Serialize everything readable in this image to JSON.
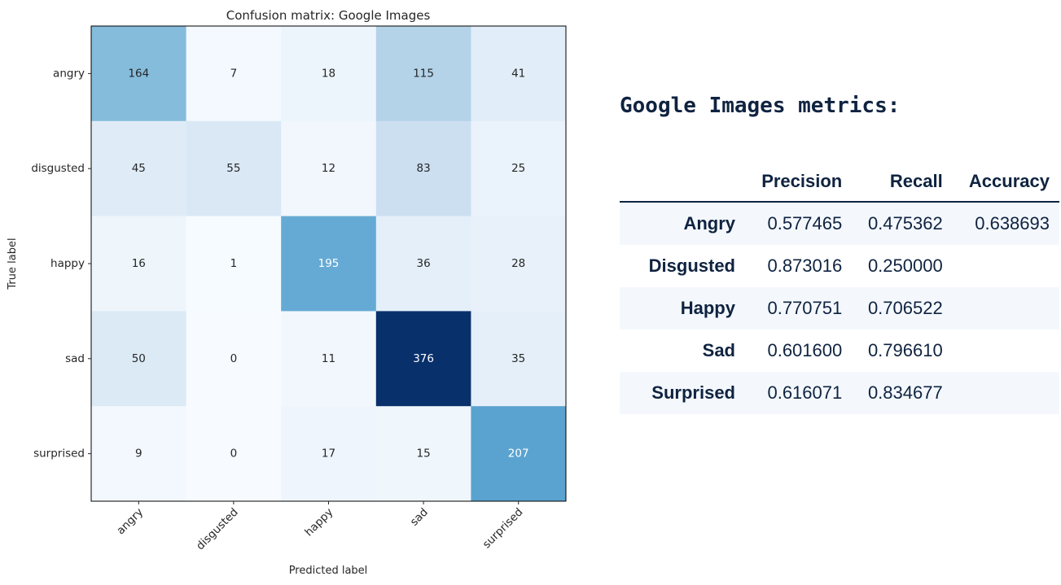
{
  "chart_data": {
    "type": "heatmap",
    "title": "Confusion matrix: Google Images",
    "xlabel": "Predicted label",
    "ylabel": "True label",
    "x_categories": [
      "angry",
      "disgusted",
      "happy",
      "sad",
      "surprised"
    ],
    "y_categories": [
      "angry",
      "disgusted",
      "happy",
      "sad",
      "surprised"
    ],
    "values": [
      [
        164,
        7,
        18,
        115,
        41
      ],
      [
        45,
        55,
        12,
        83,
        25
      ],
      [
        16,
        1,
        195,
        36,
        28
      ],
      [
        50,
        0,
        11,
        376,
        35
      ],
      [
        9,
        0,
        17,
        15,
        207
      ]
    ],
    "colormap": "Blues",
    "vmin": 0,
    "vmax": 376,
    "colors": {
      "low": "#f7fbff",
      "high": "#08306b",
      "text_dark": "#262626",
      "text_light": "#ffffff"
    }
  },
  "metrics": {
    "title": "Google Images metrics:",
    "columns": [
      "Precision",
      "Recall",
      "Accuracy"
    ],
    "rows": [
      {
        "label": "Angry",
        "precision": "0.577465",
        "recall": "0.475362",
        "accuracy": "0.638693"
      },
      {
        "label": "Disgusted",
        "precision": "0.873016",
        "recall": "0.250000",
        "accuracy": ""
      },
      {
        "label": "Happy",
        "precision": "0.770751",
        "recall": "0.706522",
        "accuracy": ""
      },
      {
        "label": "Sad",
        "precision": "0.601600",
        "recall": "0.796610",
        "accuracy": ""
      },
      {
        "label": "Surprised",
        "precision": "0.616071",
        "recall": "0.834677",
        "accuracy": ""
      }
    ],
    "colors": {
      "text": "#0f2340",
      "stripe": "#f4f8fd"
    }
  }
}
